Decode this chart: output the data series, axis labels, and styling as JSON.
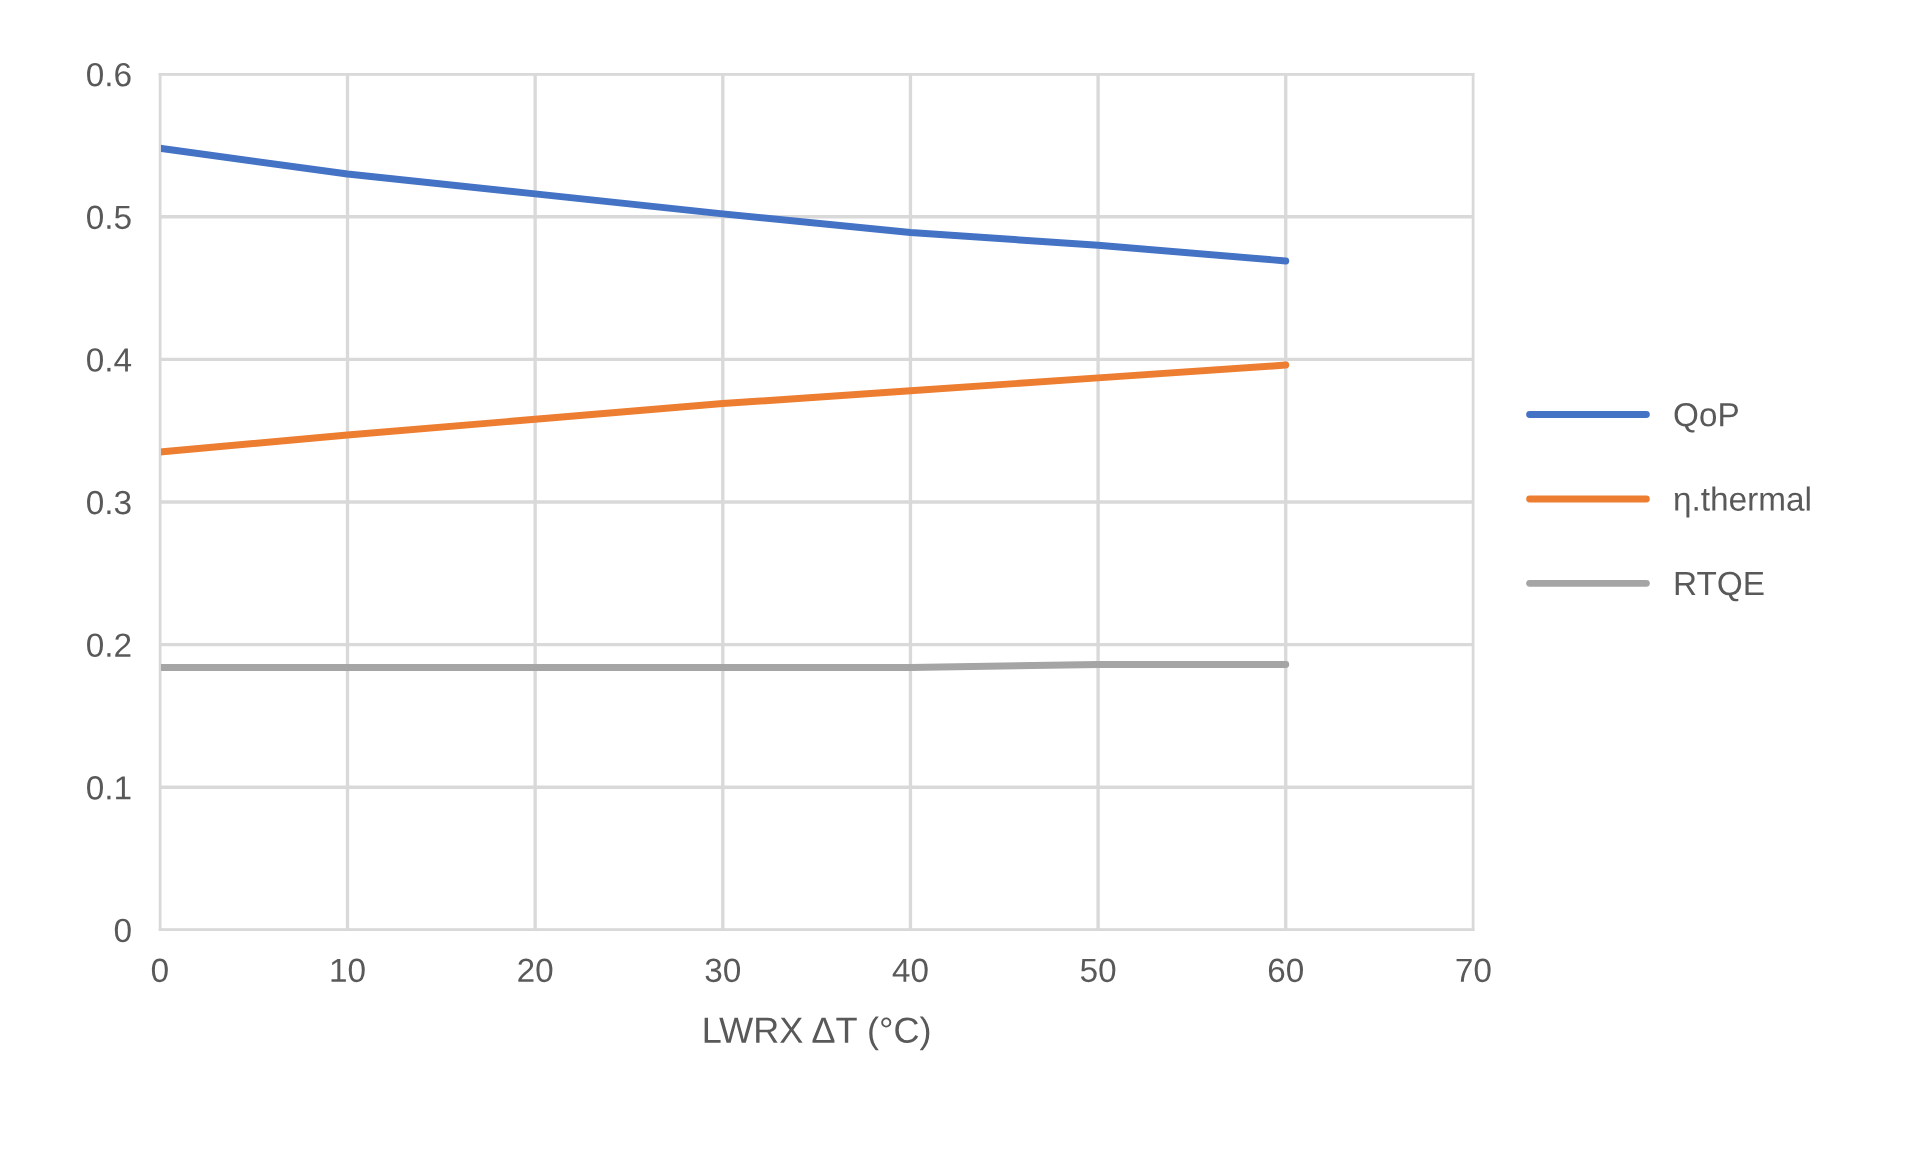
{
  "chart_data": {
    "type": "line",
    "xlabel": "LWRX ΔT (°C)",
    "x": [
      0,
      10,
      20,
      30,
      40,
      50,
      60
    ],
    "series": [
      {
        "name": "QoP",
        "color": "#4472c4",
        "values": [
          0.548,
          0.53,
          0.516,
          0.502,
          0.489,
          0.48,
          0.469
        ]
      },
      {
        "name": "η.thermal",
        "color": "#ed7d31",
        "values": [
          0.335,
          0.347,
          0.358,
          0.369,
          0.378,
          0.387,
          0.396
        ]
      },
      {
        "name": "RTQE",
        "color": "#a5a5a5",
        "values": [
          0.184,
          0.184,
          0.184,
          0.184,
          0.184,
          0.186,
          0.186
        ]
      }
    ],
    "xlim": [
      0,
      70
    ],
    "xticks": [
      0,
      10,
      20,
      30,
      40,
      50,
      60,
      70
    ],
    "ylim": [
      0,
      0.6
    ],
    "yticks": [
      0,
      0.1,
      0.2,
      0.3,
      0.4,
      0.5,
      0.6
    ],
    "grid": true,
    "legend": "right",
    "marker": "none",
    "line_style": "solid"
  }
}
